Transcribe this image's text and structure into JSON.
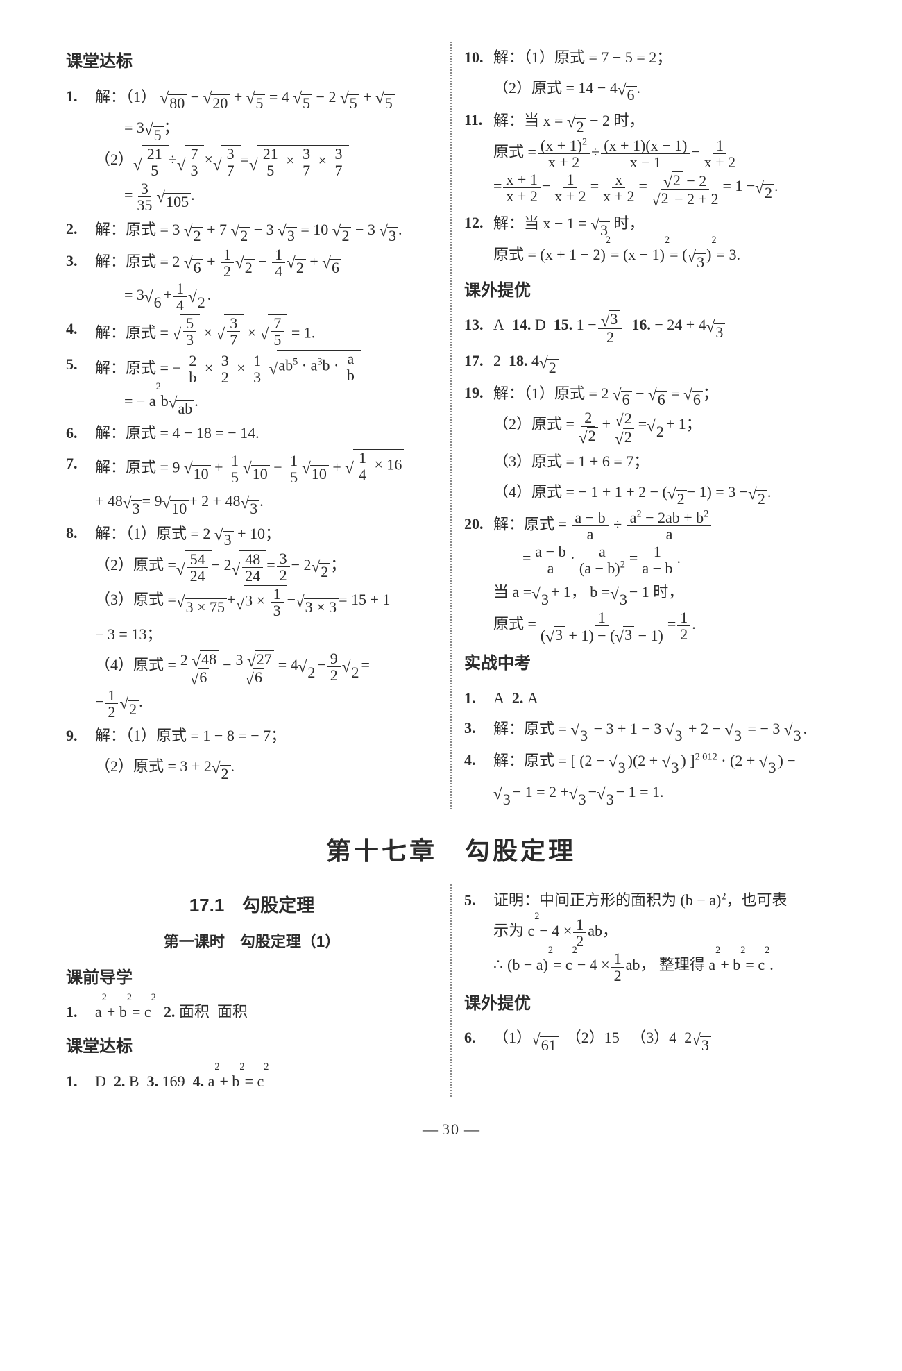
{
  "page_number": "30",
  "colors": {
    "text": "#2b2b2b",
    "divider": "#8a8a8a",
    "bg": "#ffffff"
  },
  "fonts": {
    "body_family": "SimSun / Songti",
    "head_family": "SimHei / Heiti",
    "body_size_pt": 11,
    "head_size_pt": 12,
    "chapter_size_pt": 18
  },
  "heads": {
    "ketang": "课堂达标",
    "kewai": "课外提优",
    "shizhan": "实战中考",
    "keqian": "课前导学"
  },
  "left": {
    "q1_lead": "解：（1）",
    "q1_1a": "√80 − √20 + √5 = 4 √5 − 2 √5 + √5",
    "q1_1b": "= 3 √5；",
    "q1_2lead": "（2）",
    "q1_2rhs": " = ",
    "q1_2b": " = (3/35) √105.",
    "q2": "解：原式 = 3 √2 + 7 √2 − 3 √3 = 10 √2 − 3 √3.",
    "q3a": "解：原式 = 2 √6 + (1/2)√2 − (1/4)√2 + √6",
    "q3b": "= 3 √6 + (1/4)√2.",
    "q4": "解：原式 = √(5/3) × √(3/7) × √(7/5) = 1.",
    "q5a": "解：原式 = − (2/b) × (3/2) × (1/3) √( ab^5 · a^3 b · a/b )",
    "q5b": "= − a^2 b √(ab).",
    "q6": "解：原式 = 4 − 18 = − 14.",
    "q7a": "解：原式 = 9 √10 + (1/5)√10 − (1/5)√10 + √( (1/4) × 16 )",
    "q7b": "+ 48 √3 = 9 √10 + 2 + 48 √3.",
    "q8_1": "解：（1）原式 = 2 √3 + 10；",
    "q8_2": "（2）原式 = √(54/24) − 2 √(48/24) = 3/2 − 2 √2；",
    "q8_3a": "（3）原式 = √(3 × 75) + √(3 × 1/3) − √(3 × 3) = 15 + 1",
    "q8_3b": "− 3 = 13；",
    "q8_4a": "（4）原式 = (2√48)/√6 − (3√27)/√6 = 4 √2 − (9/2)√2 =",
    "q8_4b": "− (1/2)√2.",
    "q9_1": "解：（1）原式 = 1 − 8 = − 7；",
    "q9_2": "（2）原式 = 3 + 2 √2."
  },
  "right": {
    "q10_1": "解：（1）原式 = 7 − 5 = 2；",
    "q10_2": "（2）原式 = 14 − 4 √6.",
    "q11a": "解：当 x = √2 − 2 时，",
    "q11b": "原式 = ((x+1)^2)/(x+2) ÷ ((x+1)(x−1))/(x−1) − 1/(x+2)",
    "q11c": "= (x+1)/(x+2) − 1/(x+2) = x/(x+2) = (√2−2)/(√2−2+2) = 1 − √2.",
    "q12a": "解：当 x − 1 = √3 时，",
    "q12b": "原式 = (x + 1 − 2)^2 = (x − 1)^2 = (√3)^2 = 3.",
    "q13": "A",
    "q14": "D",
    "q15": "1 − √3/2",
    "q16": "− 24 + 4 √3",
    "q17": "2",
    "q18": "4 √2",
    "q19_1": "解：（1）原式 = 2 √6 − √6 = √6；",
    "q19_2": "（2）原式 = 2/√2 + √2/√2 = √2 + 1；",
    "q19_3": "（3）原式 = 1 + 6 = 7；",
    "q19_4": "（4）原式 = − 1 + 1 + 2 − (√2 − 1) = 3 − √2.",
    "q20a": "解：原式 = (a−b)/a ÷ (a^2 − 2ab + b^2)/a",
    "q20b": "= (a−b)/a · a/(a−b)^2 = 1/(a−b).",
    "q20c": "当 a = √3 + 1，b = √3 − 1 时，",
    "q20d": "原式 = 1 / ((√3+1) − (√3−1)) = 1/2.",
    "sz1": "A",
    "sz2": "A",
    "sz3": "解：原式 = √3 − 3 + 1 − 3 √3 + 2 − √3 = − 3 √3.",
    "sz4a": "解：原式 = [ (2 − √3)(2 + √3) ]^2 012 · (2 + √3) −",
    "sz4b": "√3 − 1 = 2 + √3 − √3 − 1 = 1."
  },
  "chapter": {
    "title": "第十七章　勾股定理",
    "sec_title": "17.1　勾股定理",
    "lesson_title": "第一课时　勾股定理（1）",
    "kq1": "a^2 + b^2 = c^2",
    "kq2a": "面积",
    "kq2b": "面积",
    "kt1": "D",
    "kt2": "B",
    "kt3": "169",
    "kt4": "a^2 + b^2 = c^2",
    "q5a": "证明：中间正方形的面积为 (b − a)^2，也可表",
    "q5b": "示为 c^2 − 4 × (1/2) ab，",
    "q5c": "(b − a)^2 = c^2 − 4 × (1/2) ab， 整理得 a^2 + b^2 = c^2.",
    "q6_1": "（1）√61",
    "q6_2": "（2）15",
    "q6_3": "（3）4　2 √3"
  }
}
